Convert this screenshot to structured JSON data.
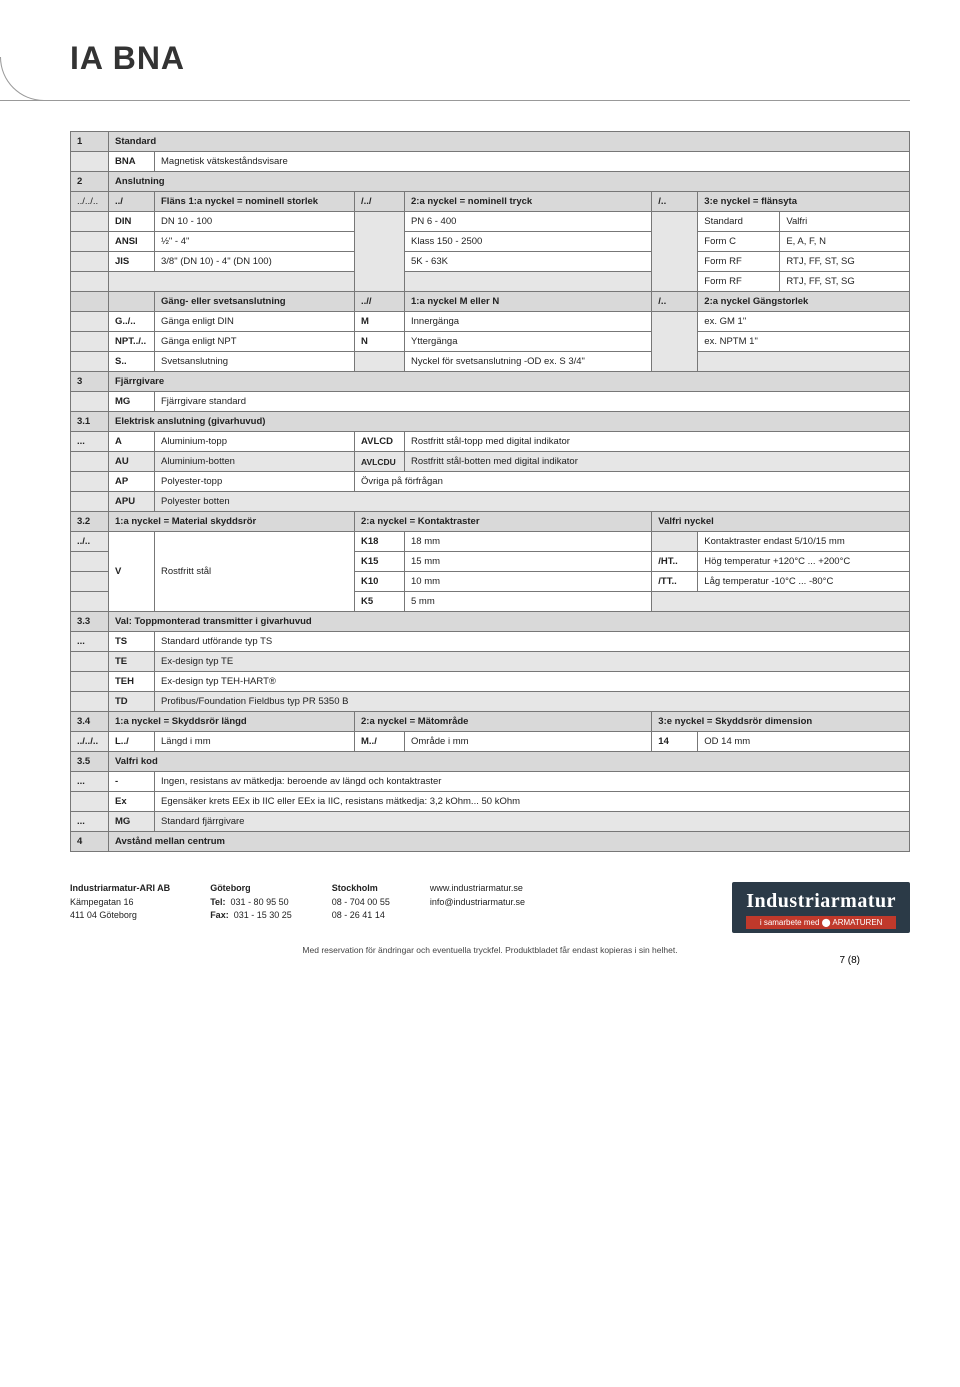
{
  "title": "IA BNA",
  "sec1": {
    "num": "1",
    "label": "Standard",
    "code": "BNA",
    "desc": "Magnetisk vätskeståndsvisare"
  },
  "sec2": {
    "num": "2",
    "label": "Anslutning",
    "row_prefix": "../../..",
    "pfx": "../",
    "h1": "Fläns 1:a nyckel = nominell storlek",
    "sep1": "/../",
    "h2": "2:a nyckel = nominell tryck",
    "sep2": "/..",
    "h3": "3:e nyckel = flänsyta",
    "r1": {
      "a": "DIN",
      "b": "DN 10 - 100",
      "c": "PN 6 - 400",
      "d": "Standard",
      "e": "Valfri"
    },
    "r2": {
      "a": "ANSI",
      "b": "½\" - 4\"",
      "c": "Klass 150 - 2500",
      "d": "Form C",
      "e": "E, A, F, N"
    },
    "r3": {
      "a": "JIS",
      "b": "3/8\" (DN 10) - 4\" (DN 100)",
      "c": "5K - 63K",
      "d": "Form RF",
      "e": "RTJ, FF, ST, SG"
    },
    "r4": {
      "d": "Form RF",
      "e": "RTJ, FF, ST, SG"
    },
    "gh1": "Gäng- eller svetsanslutning",
    "gsep1": "..//",
    "gh2": "1:a nyckel M eller N",
    "gsep2": "/..",
    "gh3": "2:a nyckel Gängstorlek",
    "g1": {
      "a": "G../..",
      "b": "Gänga enligt DIN",
      "c": "M",
      "d": "Innergänga",
      "e": "ex. GM 1\""
    },
    "g2": {
      "a": "NPT../..",
      "b": "Gänga enligt NPT",
      "c": "N",
      "d": "Yttergänga",
      "e": "ex. NPTM 1\""
    },
    "g3": {
      "a": "S..",
      "b": "Svetsanslutning",
      "d": "Nyckel för svetsanslutning -OD ex. S 3/4\""
    }
  },
  "sec3": {
    "num": "3",
    "label": "Fjärrgivare",
    "code": "MG",
    "desc": "Fjärrgivare standard"
  },
  "sec31": {
    "num": "3.1",
    "label": "Elektrisk anslutning (givarhuvud)",
    "pfx": "...",
    "r1": {
      "a": "A",
      "b": "Aluminium-topp",
      "c": "AVLCD",
      "d": "Rostfritt stål-topp med digital indikator"
    },
    "r2": {
      "a": "AU",
      "b": "Aluminium-botten",
      "c": "AVLCDU",
      "d": "Rostfritt stål-botten med digital indikator"
    },
    "r3": {
      "a": "AP",
      "b": "Polyester-topp",
      "d": "Övriga på förfrågan"
    },
    "r4": {
      "a": "APU",
      "b": "Polyester botten"
    }
  },
  "sec32": {
    "num": "3.2",
    "h1": "1:a nyckel = Material skyddsrör",
    "h2": "2:a nyckel = Kontaktraster",
    "h3": "Valfri nyckel",
    "pfx": "../..",
    "r1": {
      "a": "V",
      "b": "Rostfritt stål",
      "c": "K18",
      "d": "18 mm",
      "f": "Kontaktraster endast 5/10/15 mm"
    },
    "r2": {
      "c": "K15",
      "d": "15 mm",
      "e": "/HT..",
      "f": "Hög temperatur +120°C ... +200°C"
    },
    "r3": {
      "c": "K10",
      "d": "10 mm",
      "e": "/TT..",
      "f": "Låg temperatur -10°C ... -80°C"
    },
    "r4": {
      "c": "K5",
      "d": "5 mm"
    }
  },
  "sec33": {
    "num": "3.3",
    "label": "Val: Toppmonterad transmitter i givarhuvud",
    "pfx": "...",
    "r1": {
      "a": "TS",
      "b": "Standard utförande typ TS"
    },
    "r2": {
      "a": "TE",
      "b": "Ex-design typ TE"
    },
    "r3": {
      "a": "TEH",
      "b": "Ex-design typ TEH-HART®"
    },
    "r4": {
      "a": "TD",
      "b": "Profibus/Foundation Fieldbus typ PR 5350 B"
    }
  },
  "sec34": {
    "num": "3.4",
    "h1": "1:a nyckel = Skyddsrör längd",
    "h2": "2:a nyckel = Mätområde",
    "h3": "3:e nyckel = Skyddsrör dimension",
    "pfx": "../../..",
    "a": "L../",
    "b": "Längd i mm",
    "c": "M../",
    "d": "Område i mm",
    "e": "14",
    "f": "OD 14 mm"
  },
  "sec35": {
    "num": "3.5",
    "label": "Valfri kod",
    "r1": {
      "p": "...",
      "a": "-",
      "b": "Ingen, resistans av mätkedja: beroende av längd och kontaktraster"
    },
    "r2": {
      "a": "Ex",
      "b": "Egensäker krets EEx ib IIC eller EEx ia IIC, resistans mätkedja: 3,2 kOhm... 50 kOhm"
    },
    "r3": {
      "p": "...",
      "a": "MG",
      "b": "Standard fjärrgivare"
    }
  },
  "sec4": {
    "num": "4",
    "label": "Avstånd mellan centrum"
  },
  "footer": {
    "c1": {
      "a": "Industriarmatur-ARI AB",
      "b": "Kämpegatan 16",
      "c": "411 04 Göteborg"
    },
    "c2": {
      "a": "Göteborg",
      "b": "Tel:",
      "bn": "031 - 80 95 50",
      "c": "Fax:",
      "cn": "031 - 15 30 25"
    },
    "c3": {
      "a": "Stockholm",
      "b": "08 - 704 00 55",
      "c": "08 - 26 41 14"
    },
    "c4": {
      "a": "www.industriarmatur.se",
      "b": "info@industriarmatur.se"
    },
    "logo": "Industriarmatur",
    "logosub": "i samarbete med ⬤ ARMATUREN",
    "note": "Med reservation för ändringar och eventuella tryckfel. Produktbladet får endast kopieras i sin helhet.",
    "page": "7 (8)"
  }
}
